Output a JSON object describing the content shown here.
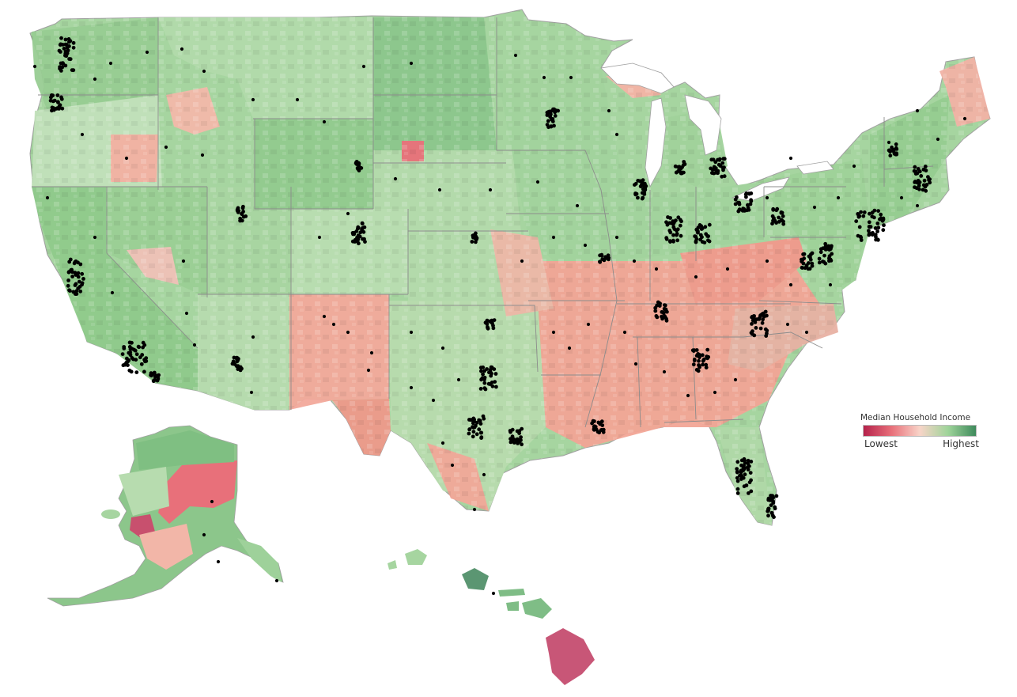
{
  "legend": {
    "title": "Median Household Income",
    "low_label": "Lowest",
    "high_label": "Highest",
    "gradient_colors": [
      "#b5224b",
      "#e8707a",
      "#f8d4c8",
      "#9fd49a",
      "#3e8a5c"
    ]
  },
  "colors": {
    "border": "#8c8c8c",
    "point": "#000000",
    "background": "#ffffff"
  }
}
